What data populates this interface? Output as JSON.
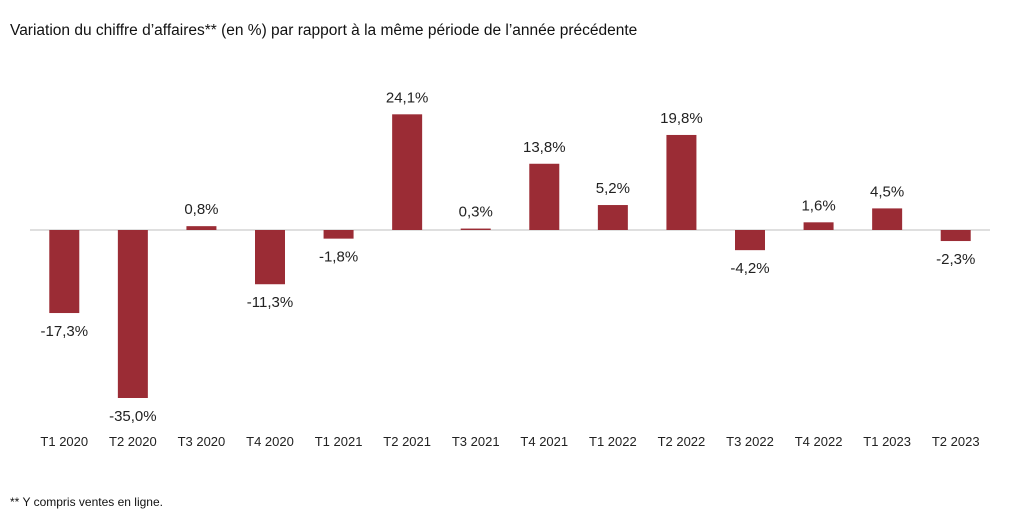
{
  "chart_data": {
    "type": "bar",
    "title": "Variation du chiffre d’affaires** (en %) par rapport à la même période de l’année précédente",
    "xlabel": "",
    "ylabel": "",
    "categories": [
      "T1 2020",
      "T2 2020",
      "T3 2020",
      "T4 2020",
      "T1 2021",
      "T2 2021",
      "T3 2021",
      "T4 2021",
      "T1 2022",
      "T2 2022",
      "T3 2022",
      "T4 2022",
      "T1 2023",
      "T2 2023"
    ],
    "values": [
      -17.3,
      -35.0,
      0.8,
      -11.3,
      -1.8,
      24.1,
      0.3,
      13.8,
      5.2,
      19.8,
      -4.2,
      1.6,
      4.5,
      -2.3
    ],
    "value_labels": [
      "-17,3%",
      "-35,0%",
      "0,8%",
      "-11,3%",
      "-1,8%",
      "24,1%",
      "0,3%",
      "13,8%",
      "5,2%",
      "19,8%",
      "-4,2%",
      "1,6%",
      "4,5%",
      "-2,3%"
    ],
    "ylim": [
      -35,
      25
    ],
    "grid": false,
    "bar_color": "#9b2c35",
    "footnote": "** Y compris ventes en ligne."
  }
}
